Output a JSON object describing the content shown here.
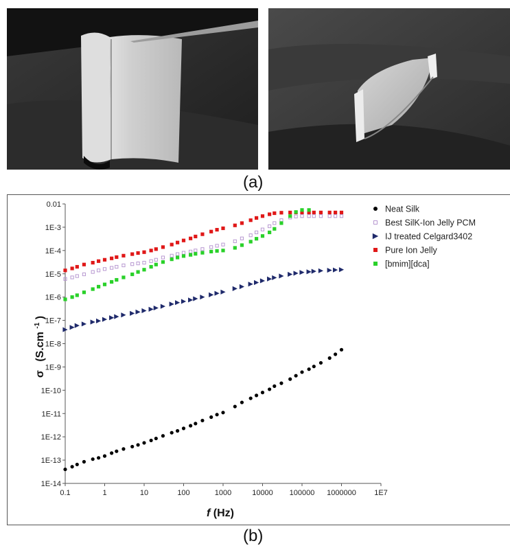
{
  "panels": {
    "top_label": "(a)",
    "bottom_label": "(b)"
  },
  "photos": {
    "left": {
      "icon": "silk-membrane-held-by-tweezers-photo"
    },
    "right": {
      "icon": "curled-silk-membrane-photo"
    }
  },
  "chart_data": {
    "type": "scatter",
    "xscale": "log",
    "yscale": "log",
    "xlabel_symbol": "f",
    "xlabel_unit": "(Hz)",
    "ylabel_symbol": "σ",
    "ylabel_unit": "(S.cm",
    "ylabel_sup": "-1",
    "ylabel_close": ")",
    "xlim": [
      0.1,
      10000000
    ],
    "ylim": [
      1e-14,
      0.01
    ],
    "x_ticks": [
      0.1,
      1,
      10,
      100,
      1000,
      10000,
      100000,
      1000000,
      10000000
    ],
    "x_tick_labels": [
      "0.1",
      "1",
      "10",
      "100",
      "1000",
      "10000",
      "100000",
      "1000000",
      "1E7"
    ],
    "y_ticks": [
      1e-14,
      1e-13,
      1e-12,
      1e-11,
      1e-10,
      1e-09,
      1e-08,
      1e-07,
      1e-06,
      1e-05,
      0.0001,
      0.001,
      0.01
    ],
    "y_tick_labels": [
      "1E-14",
      "1E-13",
      "1E-12",
      "1E-11",
      "1E-10",
      "1E-9",
      "1E-8",
      "1E-7",
      "1E-6",
      "1E-5",
      "1E-4",
      "1E-3",
      "0.01"
    ],
    "legend_position": "top-right",
    "series": [
      {
        "name": "Neat Silk",
        "marker": "circle",
        "color": "#000000",
        "points": [
          [
            0.1,
            4e-14
          ],
          [
            0.15,
            5.2e-14
          ],
          [
            0.2,
            6.5e-14
          ],
          [
            0.3,
            8.5e-14
          ],
          [
            0.5,
            1.1e-13
          ],
          [
            0.7,
            1.25e-13
          ],
          [
            1,
            1.5e-13
          ],
          [
            1.5,
            2e-13
          ],
          [
            2,
            2.4e-13
          ],
          [
            3,
            3e-13
          ],
          [
            5,
            3.8e-13
          ],
          [
            7,
            4.5e-13
          ],
          [
            10,
            5.5e-13
          ],
          [
            15,
            7e-13
          ],
          [
            20,
            8.5e-13
          ],
          [
            30,
            1.1e-12
          ],
          [
            50,
            1.5e-12
          ],
          [
            70,
            1.8e-12
          ],
          [
            100,
            2.3e-12
          ],
          [
            150,
            3e-12
          ],
          [
            200,
            3.7e-12
          ],
          [
            300,
            5e-12
          ],
          [
            500,
            7e-12
          ],
          [
            700,
            9e-12
          ],
          [
            1000,
            1.1e-11
          ],
          [
            2000,
            2e-11
          ],
          [
            3000,
            3e-11
          ],
          [
            5000,
            4.5e-11
          ],
          [
            7000,
            6e-11
          ],
          [
            10000,
            8e-11
          ],
          [
            15000,
            1.1e-10
          ],
          [
            20000,
            1.5e-10
          ],
          [
            30000,
            2e-10
          ],
          [
            50000,
            3e-10
          ],
          [
            70000,
            4.2e-10
          ],
          [
            100000,
            6e-10
          ],
          [
            150000,
            8e-10
          ],
          [
            200000,
            1.05e-09
          ],
          [
            300000,
            1.5e-09
          ],
          [
            500000,
            2.4e-09
          ],
          [
            700000,
            3.5e-09
          ],
          [
            1000000,
            5.5e-09
          ]
        ]
      },
      {
        "name": "Best SilK-Ion Jelly PCM",
        "marker": "square-open",
        "color": "#b899d1",
        "points": [
          [
            0.1,
            6e-06
          ],
          [
            0.15,
            7e-06
          ],
          [
            0.2,
            8e-06
          ],
          [
            0.3,
            9.5e-06
          ],
          [
            0.5,
            1.2e-05
          ],
          [
            0.7,
            1.4e-05
          ],
          [
            1,
            1.6e-05
          ],
          [
            1.5,
            1.8e-05
          ],
          [
            2,
            2e-05
          ],
          [
            3,
            2.3e-05
          ],
          [
            5,
            2.6e-05
          ],
          [
            7,
            2.8e-05
          ],
          [
            10,
            3e-05
          ],
          [
            15,
            3.5e-05
          ],
          [
            20,
            4e-05
          ],
          [
            30,
            5e-05
          ],
          [
            50,
            6e-05
          ],
          [
            70,
            7e-05
          ],
          [
            100,
            8e-05
          ],
          [
            150,
            9e-05
          ],
          [
            200,
            0.0001
          ],
          [
            300,
            0.000115
          ],
          [
            500,
            0.00014
          ],
          [
            700,
            0.00016
          ],
          [
            1000,
            0.00018
          ],
          [
            2000,
            0.00025
          ],
          [
            3000,
            0.00033
          ],
          [
            5000,
            0.00045
          ],
          [
            7000,
            0.0006
          ],
          [
            10000,
            0.0008
          ],
          [
            15000,
            0.0011
          ],
          [
            20000,
            0.0015
          ],
          [
            30000,
            0.002
          ],
          [
            50000,
            0.0026
          ],
          [
            70000,
            0.0029
          ],
          [
            100000,
            0.003
          ],
          [
            150000,
            0.003
          ],
          [
            200000,
            0.003
          ],
          [
            300000,
            0.003
          ],
          [
            500000,
            0.003
          ],
          [
            700000,
            0.003
          ],
          [
            1000000,
            0.003
          ]
        ]
      },
      {
        "name": "IJ treated Celgard3402",
        "marker": "triangle-right",
        "color": "#1f2a6b",
        "points": [
          [
            0.1,
            4e-08
          ],
          [
            0.15,
            5e-08
          ],
          [
            0.2,
            6e-08
          ],
          [
            0.3,
            7e-08
          ],
          [
            0.5,
            8.5e-08
          ],
          [
            0.7,
            9.5e-08
          ],
          [
            1,
            1.1e-07
          ],
          [
            1.5,
            1.3e-07
          ],
          [
            2,
            1.45e-07
          ],
          [
            3,
            1.7e-07
          ],
          [
            5,
            2e-07
          ],
          [
            7,
            2.3e-07
          ],
          [
            10,
            2.6e-07
          ],
          [
            15,
            3e-07
          ],
          [
            20,
            3.4e-07
          ],
          [
            30,
            4e-07
          ],
          [
            50,
            5e-07
          ],
          [
            70,
            5.8e-07
          ],
          [
            100,
            6.5e-07
          ],
          [
            150,
            7.5e-07
          ],
          [
            200,
            8.5e-07
          ],
          [
            300,
            1e-06
          ],
          [
            500,
            1.25e-06
          ],
          [
            700,
            1.45e-06
          ],
          [
            1000,
            1.65e-06
          ],
          [
            2000,
            2.3e-06
          ],
          [
            3000,
            2.8e-06
          ],
          [
            5000,
            3.6e-06
          ],
          [
            7000,
            4.2e-06
          ],
          [
            10000,
            5e-06
          ],
          [
            15000,
            6e-06
          ],
          [
            20000,
            6.8e-06
          ],
          [
            30000,
            8e-06
          ],
          [
            50000,
            9.5e-06
          ],
          [
            70000,
            1.05e-05
          ],
          [
            100000,
            1.15e-05
          ],
          [
            150000,
            1.22e-05
          ],
          [
            200000,
            1.28e-05
          ],
          [
            300000,
            1.35e-05
          ],
          [
            500000,
            1.42e-05
          ],
          [
            700000,
            1.46e-05
          ],
          [
            1000000,
            1.5e-05
          ]
        ]
      },
      {
        "name": "Pure Ion Jelly",
        "marker": "square",
        "color": "#e01818",
        "points": [
          [
            0.1,
            1.4e-05
          ],
          [
            0.15,
            1.7e-05
          ],
          [
            0.2,
            2e-05
          ],
          [
            0.3,
            2.5e-05
          ],
          [
            0.5,
            3e-05
          ],
          [
            0.7,
            3.5e-05
          ],
          [
            1,
            4e-05
          ],
          [
            1.5,
            4.6e-05
          ],
          [
            2,
            5.2e-05
          ],
          [
            3,
            6e-05
          ],
          [
            5,
            7e-05
          ],
          [
            7,
            7.8e-05
          ],
          [
            10,
            8.5e-05
          ],
          [
            15,
            0.0001
          ],
          [
            20,
            0.000115
          ],
          [
            30,
            0.00014
          ],
          [
            50,
            0.00018
          ],
          [
            70,
            0.00022
          ],
          [
            100,
            0.00027
          ],
          [
            150,
            0.00033
          ],
          [
            200,
            0.0004
          ],
          [
            300,
            0.0005
          ],
          [
            500,
            0.00065
          ],
          [
            700,
            0.00078
          ],
          [
            1000,
            0.0009
          ],
          [
            2000,
            0.0012
          ],
          [
            3000,
            0.0015
          ],
          [
            5000,
            0.002
          ],
          [
            7000,
            0.0025
          ],
          [
            10000,
            0.003
          ],
          [
            15000,
            0.0036
          ],
          [
            20000,
            0.004
          ],
          [
            30000,
            0.0042
          ],
          [
            50000,
            0.0043
          ],
          [
            70000,
            0.0043
          ],
          [
            100000,
            0.0043
          ],
          [
            150000,
            0.0043
          ],
          [
            200000,
            0.0043
          ],
          [
            300000,
            0.0043
          ],
          [
            500000,
            0.0043
          ],
          [
            700000,
            0.0043
          ],
          [
            1000000,
            0.0043
          ]
        ]
      },
      {
        "name": "[bmim][dca]",
        "marker": "square",
        "color": "#2ad12a",
        "points": [
          [
            0.1,
            8e-07
          ],
          [
            0.15,
            1e-06
          ],
          [
            0.2,
            1.2e-06
          ],
          [
            0.3,
            1.6e-06
          ],
          [
            0.5,
            2.2e-06
          ],
          [
            0.7,
            2.8e-06
          ],
          [
            1,
            3.5e-06
          ],
          [
            1.5,
            4.5e-06
          ],
          [
            2,
            5.5e-06
          ],
          [
            3,
            7e-06
          ],
          [
            5,
            9.5e-06
          ],
          [
            7,
            1.2e-05
          ],
          [
            10,
            1.5e-05
          ],
          [
            15,
            2e-05
          ],
          [
            20,
            2.5e-05
          ],
          [
            30,
            3.2e-05
          ],
          [
            50,
            4.2e-05
          ],
          [
            70,
            5e-05
          ],
          [
            100,
            5.8e-05
          ],
          [
            150,
            6.5e-05
          ],
          [
            200,
            7.2e-05
          ],
          [
            300,
            8e-05
          ],
          [
            500,
            9e-05
          ],
          [
            700,
            9.6e-05
          ],
          [
            1000,
            0.0001
          ],
          [
            2000,
            0.00013
          ],
          [
            3000,
            0.00017
          ],
          [
            5000,
            0.00024
          ],
          [
            7000,
            0.00032
          ],
          [
            10000,
            0.00042
          ],
          [
            15000,
            0.0006
          ],
          [
            20000,
            0.00085
          ],
          [
            30000,
            0.0015
          ],
          [
            50000,
            0.003
          ],
          [
            70000,
            0.0045
          ],
          [
            100000,
            0.0055
          ],
          [
            150000,
            0.0055
          ]
        ]
      }
    ]
  }
}
